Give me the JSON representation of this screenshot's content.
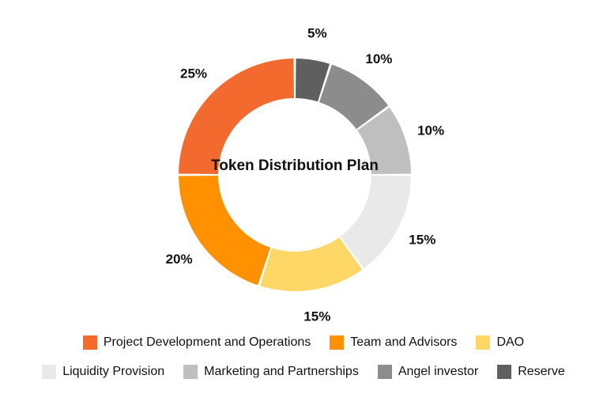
{
  "chart_data": {
    "type": "pie",
    "title": "Token Distribution Plan",
    "slices": [
      {
        "label": "Reserve",
        "value": 5,
        "value_label": "5%",
        "color": "#5f5f5f"
      },
      {
        "label": "Angel investor",
        "value": 10,
        "value_label": "10%",
        "color": "#8c8c8c"
      },
      {
        "label": "Marketing and Partnerships",
        "value": 10,
        "value_label": "10%",
        "color": "#bfbfbf"
      },
      {
        "label": "Liquidity Provision",
        "value": 15,
        "value_label": "15%",
        "color": "#e9e9e9"
      },
      {
        "label": "DAO",
        "value": 15,
        "value_label": "15%",
        "color": "#ffd766"
      },
      {
        "label": "Team and Advisors",
        "value": 20,
        "value_label": "20%",
        "color": "#ff9100"
      },
      {
        "label": "Project Development and Operations",
        "value": 25,
        "value_label": "25%",
        "color": "#f26a2e"
      }
    ],
    "legend": {
      "placement": "bottom",
      "rows": [
        [
          {
            "label": "Project Development and Operations",
            "color": "#f26a2e"
          },
          {
            "label": "Team and Advisors",
            "color": "#ff9100"
          },
          {
            "label": "DAO",
            "color": "#ffd766"
          }
        ],
        [
          {
            "label": "Liquidity Provision",
            "color": "#e9e9e9"
          },
          {
            "label": "Marketing and Partnerships",
            "color": "#bfbfbf"
          },
          {
            "label": "Angel investor",
            "color": "#8c8c8c"
          },
          {
            "label": "Reserve",
            "color": "#5f5f5f"
          }
        ]
      ]
    }
  }
}
